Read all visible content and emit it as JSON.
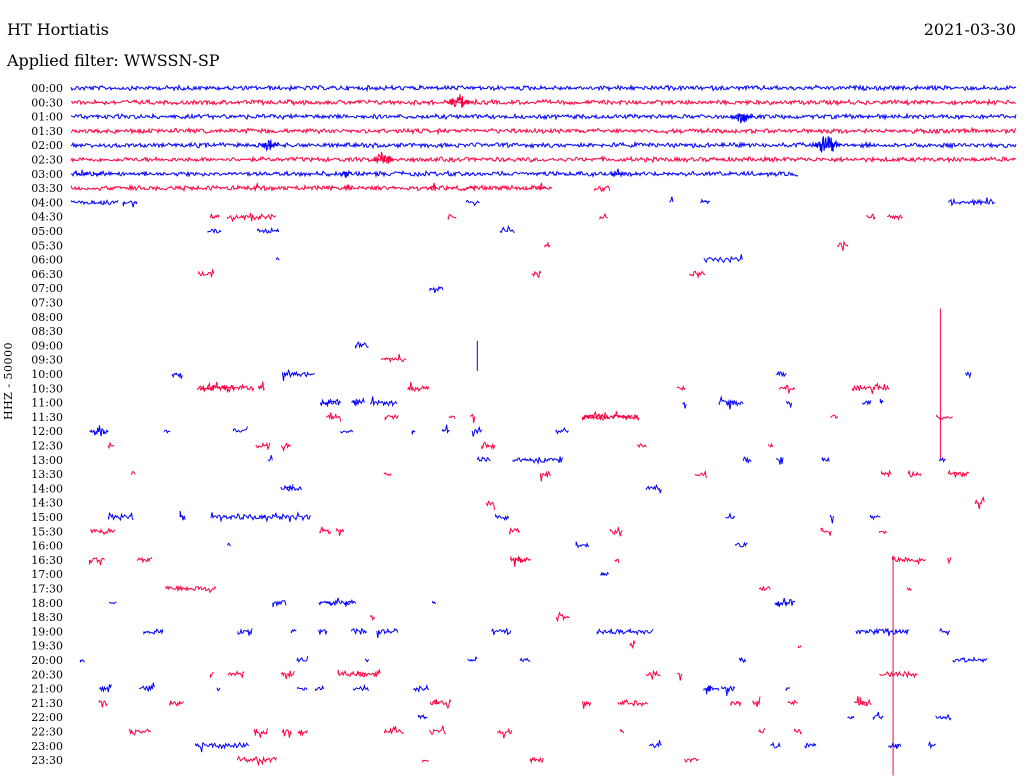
{
  "header": {
    "station": "HT Hortiatis",
    "filter_label": "Applied filter: WWSSN-SP",
    "date": "2021-03-30",
    "y_axis_label": "HHZ - 50000"
  },
  "colors": {
    "even_row": "#0000ff",
    "odd_row": "#ff0040"
  },
  "chart_data": {
    "type": "helicorder",
    "title": "HT Hortiatis",
    "subtitle": "Applied filter: WWSSN-SP",
    "ylabel": "HHZ - 50000",
    "xlabel": "",
    "rows_minutes_each": 30,
    "row_labels": [
      "00:00",
      "00:30",
      "01:00",
      "01:30",
      "02:00",
      "02:30",
      "03:00",
      "03:30",
      "04:00",
      "04:30",
      "05:00",
      "05:30",
      "06:00",
      "06:30",
      "07:00",
      "07:30",
      "08:00",
      "08:30",
      "09:00",
      "09:30",
      "10:00",
      "10:30",
      "11:00",
      "11:30",
      "12:00",
      "12:30",
      "13:00",
      "13:30",
      "14:00",
      "14:30",
      "15:00",
      "15:30",
      "16:00",
      "16:30",
      "17:00",
      "17:30",
      "18:00",
      "18:30",
      "19:00",
      "19:30",
      "20:00",
      "20:30",
      "21:00",
      "21:30",
      "22:00",
      "22:30",
      "23:00",
      "23:30"
    ],
    "series": [
      {
        "name": "00:00",
        "coverage": [
          [
            0,
            1
          ]
        ],
        "activity": 0.9,
        "events": []
      },
      {
        "name": "00:30",
        "coverage": [
          [
            0,
            1
          ]
        ],
        "activity": 0.9,
        "events": [
          {
            "pos": 0.41,
            "amp": 9
          }
        ]
      },
      {
        "name": "01:00",
        "coverage": [
          [
            0,
            1
          ]
        ],
        "activity": 0.9,
        "events": [
          {
            "pos": 0.71,
            "amp": 7
          }
        ]
      },
      {
        "name": "01:30",
        "coverage": [
          [
            0,
            1
          ]
        ],
        "activity": 0.9,
        "events": []
      },
      {
        "name": "02:00",
        "coverage": [
          [
            0,
            1
          ]
        ],
        "activity": 0.9,
        "events": [
          {
            "pos": 0.21,
            "amp": 6
          },
          {
            "pos": 0.8,
            "amp": 11
          }
        ]
      },
      {
        "name": "02:30",
        "coverage": [
          [
            0,
            1
          ]
        ],
        "activity": 0.9,
        "events": [
          {
            "pos": 0.33,
            "amp": 8
          }
        ]
      },
      {
        "name": "03:00",
        "coverage": [
          [
            0,
            0.77
          ]
        ],
        "activity": 0.8,
        "events": []
      },
      {
        "name": "03:30",
        "coverage": [
          [
            0,
            0.51
          ]
        ],
        "activity": 0.6,
        "events": []
      },
      {
        "name": "04:00",
        "coverage": [
          [
            0,
            0.05
          ]
        ],
        "activity": 0.3,
        "events": []
      },
      {
        "name": "04:30",
        "coverage": [],
        "activity": 0.25,
        "events": []
      },
      {
        "name": "05:00",
        "coverage": [],
        "activity": 0.15,
        "events": []
      },
      {
        "name": "05:30",
        "coverage": [],
        "activity": 0.1,
        "events": []
      },
      {
        "name": "06:00",
        "coverage": [],
        "activity": 0.1,
        "events": []
      },
      {
        "name": "06:30",
        "coverage": [],
        "activity": 0.15,
        "events": []
      },
      {
        "name": "07:00",
        "coverage": [],
        "activity": 0.05,
        "events": []
      },
      {
        "name": "07:30",
        "coverage": [],
        "activity": 0.0,
        "events": []
      },
      {
        "name": "08:00",
        "coverage": [],
        "activity": 0.0,
        "events": []
      },
      {
        "name": "08:30",
        "coverage": [],
        "activity": 0.0,
        "events": [
          {
            "pos": 0.92,
            "amp": 150
          }
        ]
      },
      {
        "name": "09:00",
        "coverage": [],
        "activity": 0.05,
        "events": [
          {
            "pos": 0.43,
            "amp": 30
          }
        ]
      },
      {
        "name": "09:30",
        "coverage": [],
        "activity": 0.05,
        "events": []
      },
      {
        "name": "10:00",
        "coverage": [],
        "activity": 0.2,
        "events": []
      },
      {
        "name": "10:30",
        "coverage": [],
        "activity": 0.3,
        "events": []
      },
      {
        "name": "11:00",
        "coverage": [],
        "activity": 0.5,
        "events": []
      },
      {
        "name": "11:30",
        "coverage": [],
        "activity": 0.4,
        "events": []
      },
      {
        "name": "12:00",
        "coverage": [],
        "activity": 0.3,
        "events": [
          {
            "pos": 0.03,
            "amp": 6
          }
        ]
      },
      {
        "name": "12:30",
        "coverage": [],
        "activity": 0.25,
        "events": []
      },
      {
        "name": "13:00",
        "coverage": [],
        "activity": 0.3,
        "events": []
      },
      {
        "name": "13:30",
        "coverage": [],
        "activity": 0.35,
        "events": []
      },
      {
        "name": "14:00",
        "coverage": [],
        "activity": 0.15,
        "events": []
      },
      {
        "name": "14:30",
        "coverage": [],
        "activity": 0.1,
        "events": []
      },
      {
        "name": "15:00",
        "coverage": [],
        "activity": 0.35,
        "events": []
      },
      {
        "name": "15:30",
        "coverage": [],
        "activity": 0.3,
        "events": []
      },
      {
        "name": "16:00",
        "coverage": [],
        "activity": 0.15,
        "events": []
      },
      {
        "name": "16:30",
        "coverage": [],
        "activity": 0.3,
        "events": []
      },
      {
        "name": "17:00",
        "coverage": [],
        "activity": 0.1,
        "events": []
      },
      {
        "name": "17:30",
        "coverage": [],
        "activity": 0.15,
        "events": [
          {
            "pos": 0.87,
            "amp": 220
          }
        ]
      },
      {
        "name": "18:00",
        "coverage": [],
        "activity": 0.4,
        "events": []
      },
      {
        "name": "18:30",
        "coverage": [],
        "activity": 0.1,
        "events": []
      },
      {
        "name": "19:00",
        "coverage": [],
        "activity": 0.45,
        "events": []
      },
      {
        "name": "19:30",
        "coverage": [],
        "activity": 0.1,
        "events": []
      },
      {
        "name": "20:00",
        "coverage": [],
        "activity": 0.3,
        "events": []
      },
      {
        "name": "20:30",
        "coverage": [],
        "activity": 0.35,
        "events": []
      },
      {
        "name": "21:00",
        "coverage": [],
        "activity": 0.55,
        "events": []
      },
      {
        "name": "21:30",
        "coverage": [],
        "activity": 0.5,
        "events": []
      },
      {
        "name": "22:00",
        "coverage": [],
        "activity": 0.2,
        "events": []
      },
      {
        "name": "22:30",
        "coverage": [],
        "activity": 0.45,
        "events": []
      },
      {
        "name": "23:00",
        "coverage": [],
        "activity": 0.3,
        "events": []
      },
      {
        "name": "23:30",
        "coverage": [],
        "activity": 0.2,
        "events": []
      }
    ]
  }
}
